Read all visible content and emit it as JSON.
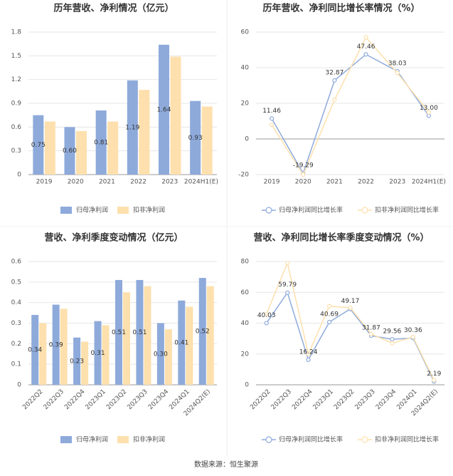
{
  "chart_data": [
    {
      "type": "bar",
      "title": "历年营收、净利情况（亿元）",
      "categories": [
        "2019",
        "2020",
        "2021",
        "2022",
        "2023",
        "2024H1(E)"
      ],
      "series": [
        {
          "name": "归母净利润",
          "color": "#8eaadb",
          "values": [
            0.75,
            0.6,
            0.81,
            1.19,
            1.64,
            0.93
          ],
          "value_labels": [
            "0.75",
            "0.60",
            "0.81",
            "1.19",
            "1.64",
            "0.93"
          ]
        },
        {
          "name": "扣非净利润",
          "color": "#fde0ad",
          "values": [
            0.67,
            0.55,
            0.67,
            1.07,
            1.49,
            0.86
          ]
        }
      ],
      "ylim": [
        0,
        1.8
      ],
      "yticks": [
        0,
        0.3,
        0.6,
        0.9,
        1.2,
        1.5,
        1.8
      ],
      "grid": true
    },
    {
      "type": "line",
      "title": "历年营收、净利同比增长率情况（%）",
      "categories": [
        "2019",
        "2020",
        "2021",
        "2022",
        "2023",
        "2024H1(E)"
      ],
      "series": [
        {
          "name": "归母净利润同比增长率",
          "color": "#8eaadb",
          "values": [
            11.46,
            -19.29,
            32.87,
            47.46,
            38.03,
            13.0
          ],
          "value_labels": [
            "11.46",
            "-19.29",
            "32.87",
            "47.46",
            "38.03",
            "13.00"
          ]
        },
        {
          "name": "扣非净利润同比增长率",
          "color": "#fde0ad",
          "values": [
            8,
            -20,
            22,
            57,
            37,
            15
          ]
        }
      ],
      "ylim": [
        -20,
        60
      ],
      "yticks": [
        -20,
        0,
        20,
        40,
        60
      ],
      "grid": true
    },
    {
      "type": "bar",
      "title": "营收、净利季度变动情况（亿元）",
      "categories": [
        "2022Q2",
        "2022Q3",
        "2022Q4",
        "2023Q1",
        "2023Q2",
        "2023Q3",
        "2023Q4",
        "2024Q1",
        "2024Q2(E)"
      ],
      "series": [
        {
          "name": "归母净利润",
          "color": "#8eaadb",
          "values": [
            0.34,
            0.39,
            0.23,
            0.31,
            0.51,
            0.51,
            0.3,
            0.41,
            0.52
          ],
          "value_labels": [
            "0.34",
            "0.39",
            "0.23",
            "0.31",
            "0.51",
            "0.51",
            "0.30",
            "0.41",
            "0.52"
          ]
        },
        {
          "name": "扣非净利润",
          "color": "#fde0ad",
          "values": [
            0.3,
            0.37,
            0.21,
            0.29,
            0.45,
            0.48,
            0.27,
            0.38,
            0.48
          ]
        }
      ],
      "ylim": [
        0,
        0.6
      ],
      "yticks": [
        0,
        0.1,
        0.2,
        0.3,
        0.4,
        0.5,
        0.6
      ],
      "grid": true
    },
    {
      "type": "line",
      "title": "营收、净利同比增长率季度变动情况（%）",
      "categories": [
        "2022Q2",
        "2022Q3",
        "2022Q4",
        "2023Q1",
        "2023Q2",
        "2023Q3",
        "2023Q4",
        "2024Q1",
        "2024Q2(E)"
      ],
      "series": [
        {
          "name": "归母净利润同比增长率",
          "color": "#8eaadb",
          "values": [
            40.03,
            59.79,
            16.24,
            40.69,
            49.17,
            31.87,
            29.56,
            30.36,
            2.19
          ],
          "data_labels": true
        },
        {
          "name": "扣非净利润同比增长率",
          "color": "#fde0ad",
          "values": [
            46,
            79,
            20,
            51,
            50,
            33,
            27,
            31,
            3
          ]
        }
      ],
      "ylim": [
        0,
        80
      ],
      "yticks": [
        0,
        20,
        40,
        60,
        80
      ],
      "grid": true
    }
  ],
  "source": "数据来源：恒生聚源"
}
